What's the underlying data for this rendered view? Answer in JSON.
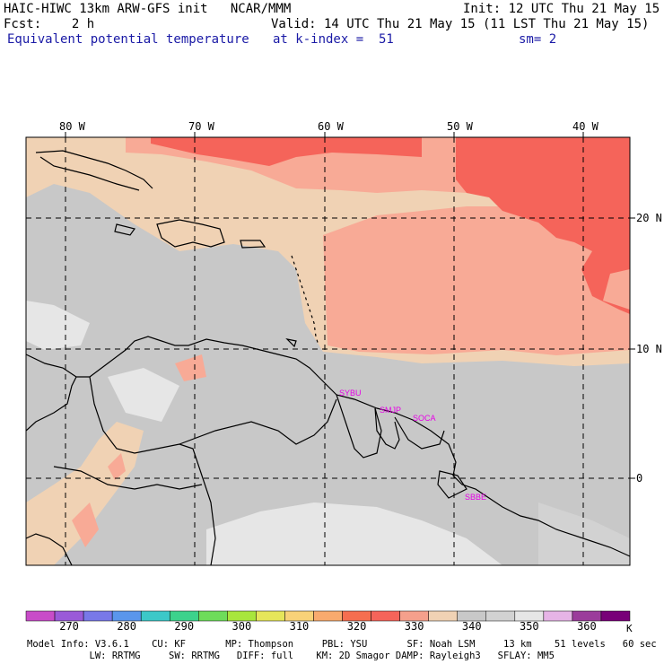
{
  "header": {
    "line1_left": "HAIC-HIWC 13km ARW-GFS init   NCAR/MMM",
    "line1_right": "Init: 12 UTC Thu 21 May 15",
    "line2_left": "Fcst:    2 h",
    "line2_right": "Valid: 14 UTC Thu 21 May 15 (11 LST Thu 21 May 15)",
    "line3_left": "Equivalent potential temperature",
    "line3_mid": "at k-index =  51",
    "line3_right": "sm= 2"
  },
  "axes": {
    "lon_labels": [
      "80 W",
      "70 W",
      "60 W",
      "50 W",
      "40 W"
    ],
    "lat_labels": [
      "20 N",
      "10 N",
      "0"
    ]
  },
  "stations": [
    "SYBU",
    "SMJP",
    "SOCA",
    "SBBE"
  ],
  "colorbar": {
    "labels": [
      "270",
      "280",
      "290",
      "300",
      "310",
      "320",
      "330",
      "340",
      "350",
      "360"
    ],
    "unit": "K",
    "colors": [
      "#c84cc8",
      "#9a5ad8",
      "#7878e8",
      "#5a96ec",
      "#3cc8c8",
      "#3cd28c",
      "#6edc5a",
      "#a8e63c",
      "#e6e65a",
      "#f8d278",
      "#f8aa6e",
      "#f56e50",
      "#f5645a",
      "#f5a08c",
      "#f0d2b4",
      "#c8c8c8",
      "#d2d2d2",
      "#e6e6e6",
      "#e6b4e6",
      "#9b3c9b",
      "#780078"
    ]
  },
  "footer": {
    "line1": "Model Info: V3.6.1    CU: KF       MP: Thompson     PBL: YSU       SF: Noah LSM     13 km    51 levels   60 sec",
    "line2": "           LW: RRTMG     SW: RRTMG   DIFF: full    KM: 2D Smagor DAMP: Rayleigh3   SFLAY: MM5"
  },
  "colors": {
    "header_blue": "#1a1aa6",
    "station_magenta": "#e600e6",
    "theta_e_330": "#f5645a",
    "theta_e_335": "#f8aa96",
    "theta_e_340": "#f0d2b4",
    "theta_e_345": "#c8c8c8",
    "theta_e_350": "#e6e6e6"
  }
}
